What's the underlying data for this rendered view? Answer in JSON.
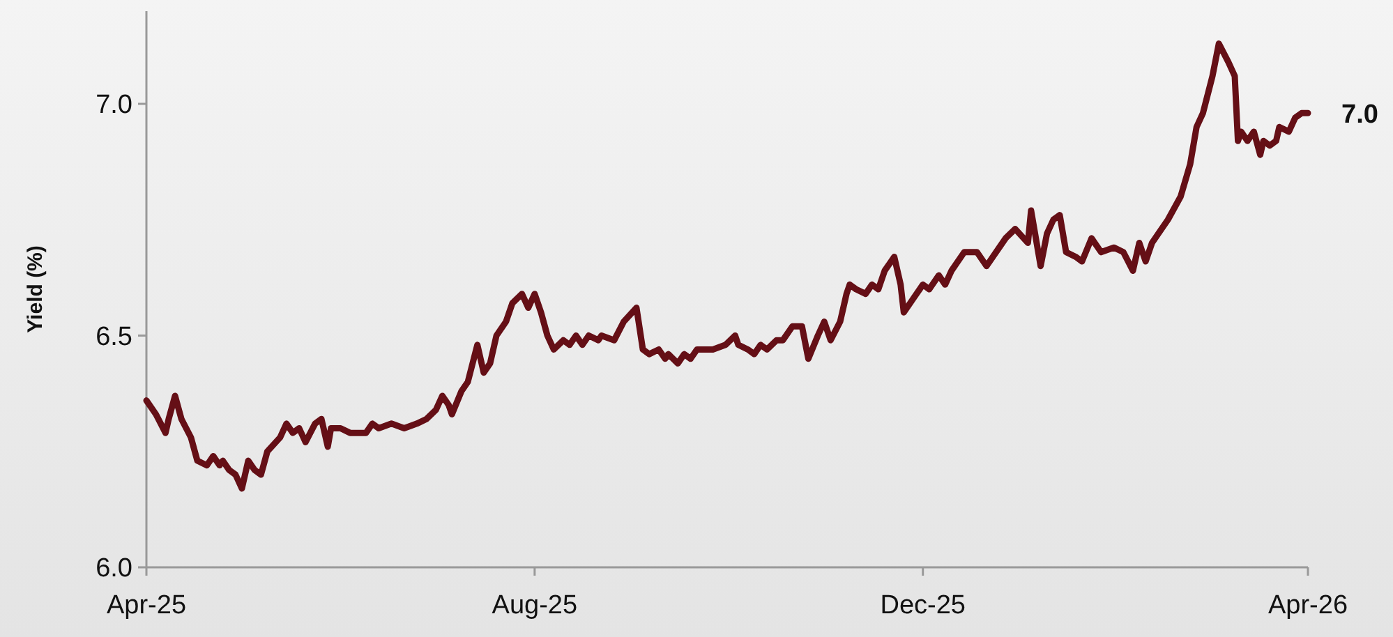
{
  "chart_data": {
    "type": "line",
    "ylabel": "Yield (%)",
    "x": [
      "2025-04-01",
      "2025-04-04",
      "2025-04-07",
      "2025-04-08",
      "2025-04-10",
      "2025-04-12",
      "2025-04-15",
      "2025-04-17",
      "2025-04-20",
      "2025-04-22",
      "2025-04-24",
      "2025-04-25",
      "2025-04-27",
      "2025-04-29",
      "2025-05-01",
      "2025-05-03",
      "2025-05-05",
      "2025-05-07",
      "2025-05-09",
      "2025-05-13",
      "2025-05-15",
      "2025-05-17",
      "2025-05-19",
      "2025-05-21",
      "2025-05-24",
      "2025-05-26",
      "2025-05-28",
      "2025-05-29",
      "2025-06-01",
      "2025-06-04",
      "2025-06-09",
      "2025-06-11",
      "2025-06-13",
      "2025-06-17",
      "2025-06-21",
      "2025-06-25",
      "2025-06-28",
      "2025-07-01",
      "2025-07-03",
      "2025-07-05",
      "2025-07-06",
      "2025-07-09",
      "2025-07-11",
      "2025-07-14",
      "2025-07-16",
      "2025-07-18",
      "2025-07-20",
      "2025-07-23",
      "2025-07-25",
      "2025-07-28",
      "2025-07-30",
      "2025-08-01",
      "2025-08-03",
      "2025-08-05",
      "2025-08-07",
      "2025-08-10",
      "2025-08-12",
      "2025-08-14",
      "2025-08-16",
      "2025-08-18",
      "2025-08-21",
      "2025-08-22",
      "2025-08-26",
      "2025-08-29",
      "2025-09-02",
      "2025-09-04",
      "2025-09-06",
      "2025-09-09",
      "2025-09-11",
      "2025-09-12",
      "2025-09-15",
      "2025-09-17",
      "2025-09-19",
      "2025-09-21",
      "2025-09-26",
      "2025-09-30",
      "2025-10-03",
      "2025-10-04",
      "2025-10-07",
      "2025-10-09",
      "2025-10-11",
      "2025-10-13",
      "2025-10-16",
      "2025-10-18",
      "2025-10-21",
      "2025-10-24",
      "2025-10-26",
      "2025-10-29",
      "2025-10-31",
      "2025-11-02",
      "2025-11-05",
      "2025-11-07",
      "2025-11-08",
      "2025-11-10",
      "2025-11-13",
      "2025-11-15",
      "2025-11-17",
      "2025-11-19",
      "2025-11-22",
      "2025-11-24",
      "2025-11-25",
      "2025-11-28",
      "2025-12-01",
      "2025-12-03",
      "2025-12-06",
      "2025-12-08",
      "2025-12-10",
      "2025-12-14",
      "2025-12-18",
      "2025-12-21",
      "2025-12-25",
      "2025-12-27",
      "2025-12-30",
      "2026-01-03",
      "2026-01-04",
      "2026-01-07",
      "2026-01-09",
      "2026-01-11",
      "2026-01-13",
      "2026-01-15",
      "2026-01-18",
      "2026-01-20",
      "2026-01-23",
      "2026-01-26",
      "2026-01-30",
      "2026-02-02",
      "2026-02-05",
      "2026-02-07",
      "2026-02-09",
      "2026-02-11",
      "2026-02-14",
      "2026-02-16",
      "2026-02-20",
      "2026-02-23",
      "2026-02-25",
      "2026-02-27",
      "2026-03-02",
      "2026-03-04",
      "2026-03-07",
      "2026-03-09",
      "2026-03-10",
      "2026-03-11",
      "2026-03-13",
      "2026-03-15",
      "2026-03-17",
      "2026-03-18",
      "2026-03-20",
      "2026-03-22",
      "2026-03-23",
      "2026-03-26",
      "2026-03-28",
      "2026-03-30",
      "2026-04-01"
    ],
    "series": [
      {
        "color": "#650f16",
        "values": [
          6.36,
          6.33,
          6.29,
          6.32,
          6.37,
          6.32,
          6.28,
          6.23,
          6.22,
          6.24,
          6.22,
          6.23,
          6.21,
          6.2,
          6.17,
          6.23,
          6.21,
          6.2,
          6.25,
          6.28,
          6.31,
          6.29,
          6.3,
          6.27,
          6.31,
          6.32,
          6.26,
          6.3,
          6.3,
          6.29,
          6.29,
          6.31,
          6.3,
          6.31,
          6.3,
          6.31,
          6.32,
          6.34,
          6.37,
          6.35,
          6.33,
          6.38,
          6.4,
          6.48,
          6.42,
          6.44,
          6.5,
          6.53,
          6.57,
          6.59,
          6.56,
          6.59,
          6.55,
          6.5,
          6.47,
          6.49,
          6.48,
          6.5,
          6.48,
          6.5,
          6.49,
          6.5,
          6.49,
          6.53,
          6.56,
          6.47,
          6.46,
          6.47,
          6.45,
          6.46,
          6.44,
          6.46,
          6.45,
          6.47,
          6.47,
          6.48,
          6.5,
          6.48,
          6.47,
          6.46,
          6.48,
          6.47,
          6.49,
          6.49,
          6.52,
          6.52,
          6.45,
          6.5,
          6.53,
          6.49,
          6.53,
          6.59,
          6.61,
          6.6,
          6.59,
          6.61,
          6.6,
          6.64,
          6.67,
          6.61,
          6.55,
          6.58,
          6.61,
          6.6,
          6.63,
          6.61,
          6.64,
          6.68,
          6.68,
          6.65,
          6.69,
          6.71,
          6.73,
          6.7,
          6.77,
          6.65,
          6.72,
          6.75,
          6.76,
          6.68,
          6.67,
          6.66,
          6.71,
          6.68,
          6.69,
          6.68,
          6.64,
          6.7,
          6.66,
          6.7,
          6.73,
          6.75,
          6.8,
          6.87,
          6.95,
          6.98,
          7.06,
          7.13,
          7.09,
          7.06,
          6.92,
          6.94,
          6.92,
          6.94,
          6.89,
          6.92,
          6.91,
          6.92,
          6.95,
          6.94,
          6.97,
          6.98,
          6.98
        ]
      }
    ],
    "xlim": [
      "2025-04-01",
      "2026-04-01"
    ],
    "xticks": [
      {
        "value": "2025-04-01",
        "label": "Apr-25"
      },
      {
        "value": "2025-08-01",
        "label": "Aug-25"
      },
      {
        "value": "2025-12-01",
        "label": "Dec-25"
      },
      {
        "value": "2026-04-01",
        "label": "Apr-26"
      }
    ],
    "ylim": [
      6.0,
      7.2
    ],
    "yticks": [
      {
        "value": 6,
        "label": "6.0"
      },
      {
        "value": 6.5,
        "label": "6.5"
      },
      {
        "value": 7,
        "label": "7.0"
      }
    ],
    "annotations": [
      {
        "text": "7.0",
        "x": "2026-04-01",
        "y": 6.98
      }
    ],
    "grid": false,
    "marker": "none",
    "line_style": "solid"
  }
}
